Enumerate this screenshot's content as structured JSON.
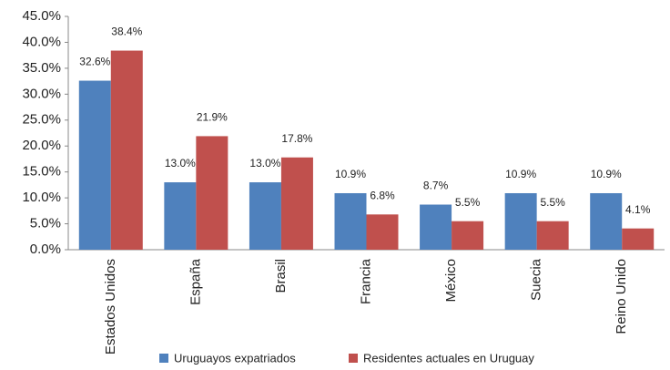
{
  "chart_data": {
    "type": "bar",
    "categories": [
      "Estados Unidos",
      "España",
      "Brasil",
      "Francia",
      "México",
      "Suecia",
      "Reino Unido"
    ],
    "series": [
      {
        "name": "Uruguayos expatriados",
        "color": "#4f81bd",
        "values": [
          32.6,
          13.0,
          13.0,
          10.9,
          8.7,
          10.9,
          10.9
        ],
        "value_labels": [
          "32.6%",
          "13.0%",
          "13.0%",
          "10.9%",
          "8.7%",
          "10.9%",
          "10.9%"
        ]
      },
      {
        "name": "Residentes actuales en Uruguay",
        "color": "#c0504d",
        "values": [
          38.4,
          21.9,
          17.8,
          6.8,
          5.5,
          5.5,
          4.1
        ],
        "value_labels": [
          "38.4%",
          "21.9%",
          "17.8%",
          "6.8%",
          "5.5%",
          "5.5%",
          "4.1%"
        ]
      }
    ],
    "ylim": [
      0,
      45
    ],
    "yticks": [
      {
        "value": 0,
        "label": "0.0%"
      },
      {
        "value": 5,
        "label": "5.0%"
      },
      {
        "value": 10,
        "label": "10.0%"
      },
      {
        "value": 15,
        "label": "15.0%"
      },
      {
        "value": 20,
        "label": "20.0%"
      },
      {
        "value": 25,
        "label": "25.0%"
      },
      {
        "value": 30,
        "label": "30.0%"
      },
      {
        "value": 35,
        "label": "35.0%"
      },
      {
        "value": 40,
        "label": "40.0%"
      },
      {
        "value": 45,
        "label": "45.0%"
      }
    ],
    "grid": false,
    "legend": "bottom"
  }
}
